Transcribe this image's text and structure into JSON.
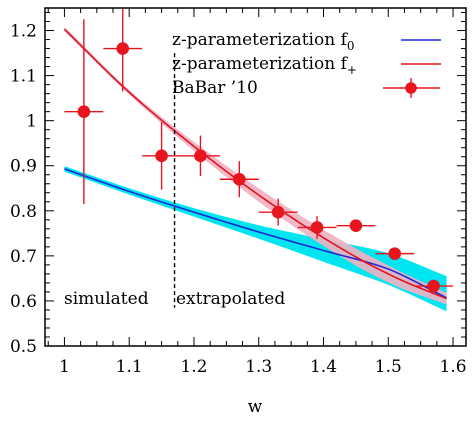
{
  "chart_data": {
    "type": "line",
    "title": "",
    "xlabel": "w",
    "ylabel": "",
    "xlim": [
      0.97,
      1.62
    ],
    "ylim": [
      0.5,
      1.25
    ],
    "grid": false,
    "legend_position": "top-right",
    "x_ticks": [
      1,
      1.1,
      1.2,
      1.3,
      1.4,
      1.5,
      1.6
    ],
    "x_tick_labels": [
      "1",
      "1.1",
      "1.2",
      "1.3",
      "1.4",
      "1.5",
      "1.6"
    ],
    "y_ticks": [
      0.5,
      0.6,
      0.7,
      0.8,
      0.9,
      1.0,
      1.1,
      1.2
    ],
    "y_tick_labels": [
      "0.5",
      "0.6",
      "0.7",
      "0.8",
      "0.9",
      "1",
      "1.1",
      "1.2"
    ],
    "divider_x": 1.17,
    "region_labels": [
      "simulated",
      "extrapolated"
    ],
    "series": [
      {
        "name": "z-parameterization f0",
        "legend_main": "z-parameterization f",
        "legend_sub": "0",
        "kind": "line_band",
        "color": "#1f2bd6",
        "band_color": "#00e5ef",
        "x": [
          1.0,
          1.1,
          1.2,
          1.3,
          1.4,
          1.5,
          1.59
        ],
        "values": [
          0.893,
          0.843,
          0.797,
          0.753,
          0.712,
          0.671,
          0.607
        ],
        "band_low": [
          0.887,
          0.836,
          0.787,
          0.738,
          0.687,
          0.636,
          0.577
        ],
        "band_high": [
          0.899,
          0.85,
          0.806,
          0.768,
          0.737,
          0.706,
          0.655
        ]
      },
      {
        "name": "z-parameterization f+",
        "legend_main": "z-parameterization f",
        "legend_sub": "+",
        "kind": "line_band",
        "color": "#e0141e",
        "band_color": "#f2b0c2",
        "x": [
          1.0,
          1.1,
          1.2,
          1.3,
          1.4,
          1.5,
          1.59
        ],
        "values": [
          1.203,
          1.063,
          0.943,
          0.835,
          0.74,
          0.66,
          0.605
        ],
        "band_low": [
          1.198,
          1.058,
          0.933,
          0.82,
          0.722,
          0.641,
          0.592
        ],
        "band_high": [
          1.208,
          1.068,
          0.953,
          0.85,
          0.758,
          0.679,
          0.618
        ]
      },
      {
        "name": "BaBar ’10",
        "legend_main": "BaBar ’10",
        "legend_sub": "",
        "kind": "points",
        "color": "#e8141e",
        "x": [
          1.03,
          1.09,
          1.15,
          1.21,
          1.27,
          1.33,
          1.39,
          1.45,
          1.51,
          1.57
        ],
        "values": [
          1.02,
          1.16,
          0.922,
          0.922,
          0.87,
          0.797,
          0.763,
          0.767,
          0.705,
          0.633
        ],
        "x_err": [
          0.03,
          0.03,
          0.03,
          0.03,
          0.03,
          0.03,
          0.03,
          0.03,
          0.03,
          0.03
        ],
        "y_err": [
          0.205,
          0.095,
          0.075,
          0.045,
          0.04,
          0.03,
          0.025,
          0.0,
          0.0,
          0.0
        ]
      }
    ]
  }
}
